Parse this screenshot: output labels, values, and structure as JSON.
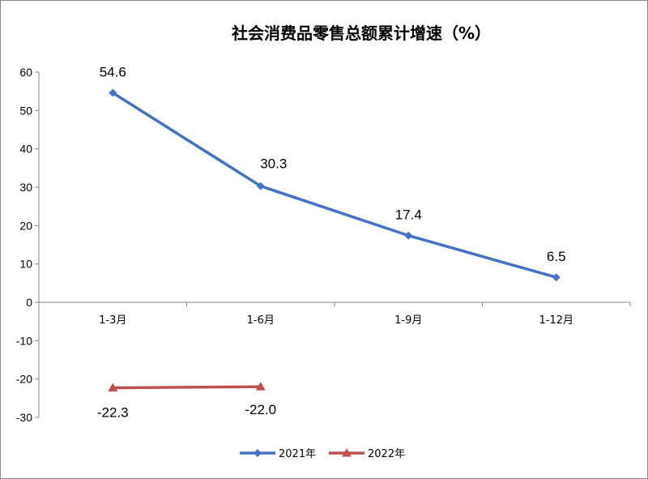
{
  "chart_data": {
    "type": "line",
    "title": "社会消费品零售总额累计增速（%）",
    "categories": [
      "1-3月",
      "1-6月",
      "1-9月",
      "1-12月"
    ],
    "series": [
      {
        "name": "2021年",
        "values": [
          54.6,
          30.3,
          17.4,
          6.5
        ],
        "color": "#4472C4",
        "marker": "diamond"
      },
      {
        "name": "2022年",
        "values": [
          -22.3,
          -22.0,
          null,
          null
        ],
        "color": "#C0504D",
        "marker": "triangle"
      }
    ],
    "data_labels": [
      [
        "54.6",
        "30.3",
        "17.4",
        "6.5"
      ],
      [
        "-22.3",
        "-22.0",
        null,
        null
      ]
    ],
    "yticks": [
      "60",
      "50",
      "40",
      "30",
      "20",
      "10",
      "0",
      "-10",
      "-20",
      "-30"
    ],
    "ylim": [
      -30,
      60
    ],
    "grid": false,
    "legend": "bottom"
  }
}
